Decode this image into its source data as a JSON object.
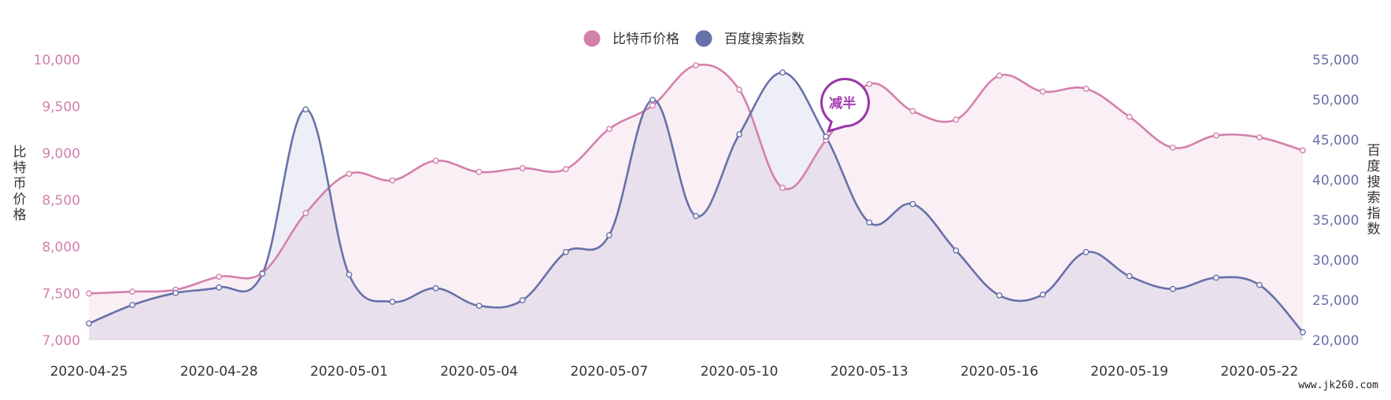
{
  "chart_data": {
    "type": "area",
    "x": [
      "2020-04-25",
      "2020-04-26",
      "2020-04-27",
      "2020-04-28",
      "2020-04-29",
      "2020-04-30",
      "2020-05-01",
      "2020-05-02",
      "2020-05-03",
      "2020-05-04",
      "2020-05-05",
      "2020-05-06",
      "2020-05-07",
      "2020-05-08",
      "2020-05-09",
      "2020-05-10",
      "2020-05-11",
      "2020-05-12",
      "2020-05-13",
      "2020-05-14",
      "2020-05-15",
      "2020-05-16",
      "2020-05-17",
      "2020-05-18",
      "2020-05-19",
      "2020-05-20",
      "2020-05-21",
      "2020-05-22",
      "2020-05-23"
    ],
    "x_tick_labels": [
      "2020-04-25",
      "2020-04-28",
      "2020-05-01",
      "2020-05-04",
      "2020-05-07",
      "2020-05-10",
      "2020-05-13",
      "2020-05-16",
      "2020-05-19",
      "2020-05-22"
    ],
    "series": [
      {
        "name": "比特币价格",
        "axis": "left",
        "color": "#d480ac",
        "values": [
          7500,
          7520,
          7540,
          7680,
          7720,
          8360,
          8780,
          8710,
          8920,
          8800,
          8840,
          8830,
          9260,
          9510,
          9940,
          9680,
          8630,
          9140,
          9740,
          9450,
          9360,
          9830,
          9660,
          9690,
          9390,
          9060,
          9190,
          9170,
          9030
        ]
      },
      {
        "name": "百度搜索指数",
        "axis": "right",
        "color": "#6771a9",
        "values": [
          22100,
          24400,
          25900,
          26600,
          28300,
          48800,
          28200,
          24800,
          26500,
          24300,
          25000,
          31000,
          33100,
          50000,
          35500,
          45700,
          53400,
          45400,
          34700,
          37000,
          31200,
          25600,
          25700,
          31000,
          28000,
          26400,
          27800,
          26900,
          21000
        ]
      }
    ],
    "y_left": {
      "label": "比特币价格",
      "min": 7000,
      "max": 10000,
      "ticks": [
        "7,000",
        "7,500",
        "8,000",
        "8,500",
        "9,000",
        "9,500",
        "10,000"
      ],
      "color": "#d480ac"
    },
    "y_right": {
      "label": "百度搜索指数",
      "min": 20000,
      "max": 55000,
      "ticks": [
        "20,000",
        "25,000",
        "30,000",
        "35,000",
        "40,000",
        "45,000",
        "50,000",
        "55,000"
      ],
      "color": "#6771a9"
    },
    "legend_position": "top-center",
    "grid": false,
    "annotation": {
      "text": "减半",
      "x": "2020-05-12"
    }
  },
  "watermark": "www.jk260.com"
}
